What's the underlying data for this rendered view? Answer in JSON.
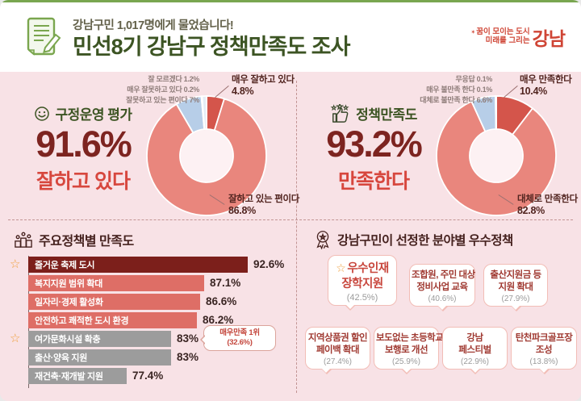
{
  "colors": {
    "background": "#f8e2e6",
    "header_green": "#79a650",
    "title_green": "#3c5423",
    "big_maroon": "#7d2420",
    "verdict_red": "#d7473e",
    "donut_main": "#e9867d",
    "donut_strong": "#d4554b",
    "donut_blue": "#b7cee8",
    "bar_top": "#7c1f1b",
    "bar_salmon": "#de6e66",
    "bar_gray": "#9c9c9c",
    "logo_red": "#cf4434"
  },
  "header": {
    "kicker": "강남구민 1,017명에게 물었습니다!",
    "title": "민선8기 강남구 정책만족도 조사",
    "logo": {
      "line1": "꿈이 모이는 도시",
      "line2": "미래를 그리는",
      "brand": "강남"
    }
  },
  "chart_data": [
    {
      "type": "pie",
      "subtype": "donut",
      "title": "구정운영 평가",
      "center_value": "91.6%",
      "verdict": "잘하고 있다",
      "slices": [
        {
          "label": "매우 잘하고 있다",
          "value": 4.8,
          "color": "#d4554b"
        },
        {
          "label": "잘하고 있는 편이다",
          "value": 86.8,
          "color": "#e9867d"
        },
        {
          "label": "잘못하고 있는 편이다",
          "value": 7.0,
          "color": "#b7cee8"
        },
        {
          "label": "매우 잘못하고 있다",
          "value": 0.2,
          "color": "#f1dfe2"
        },
        {
          "label": "잘 모르겠다",
          "value": 1.2,
          "color": "#e4edf6"
        }
      ],
      "labels": {
        "minor": [
          "잘 모르겠다 1.2%",
          "매우 잘못하고 있다 0.2%",
          "잘못하고 있는 편이다 7%"
        ],
        "top_name": "매우 잘하고 있다",
        "top_pct": "4.8%",
        "bottom_name": "잘하고 있는 편이다",
        "bottom_pct": "86.8%"
      }
    },
    {
      "type": "pie",
      "subtype": "donut",
      "title": "정책만족도",
      "center_value": "93.2%",
      "verdict": "만족한다",
      "slices": [
        {
          "label": "매우 만족한다",
          "value": 10.4,
          "color": "#d4554b"
        },
        {
          "label": "대체로 만족한다",
          "value": 82.8,
          "color": "#e9867d"
        },
        {
          "label": "대체로 불만족 한다",
          "value": 6.6,
          "color": "#b7cee8"
        },
        {
          "label": "매우 불만족 한다",
          "value": 0.1,
          "color": "#f1dfe2"
        },
        {
          "label": "무응답",
          "value": 0.1,
          "color": "#e4edf6"
        }
      ],
      "labels": {
        "minor": [
          "무응답 0.1%",
          "매우 불만족 한다 0.1%",
          "대체로 불만족 한다 6.6%"
        ],
        "top_name": "매우 만족한다",
        "top_pct": "10.4%",
        "bottom_name": "대체로 만족한다",
        "bottom_pct": "82.8%"
      }
    },
    {
      "type": "bar",
      "title": "주요정책별 만족도",
      "categories": [
        "즐거운 축제 도시",
        "복지지원 범위 확대",
        "일자리·경제 활성화",
        "안전하고 쾌적한 도시 환경",
        "여가문화시설 확충",
        "출산·양육 지원",
        "재건축·재개발 지원"
      ],
      "values": [
        92.6,
        87.1,
        86.6,
        86.2,
        83,
        83,
        77.4
      ],
      "value_labels": [
        "92.6%",
        "87.1%",
        "86.6%",
        "86.2%",
        "83%",
        "83%",
        "77.4%"
      ],
      "colors": [
        "#7c1f1b",
        "#de6e66",
        "#de6e66",
        "#de6e66",
        "#9c9c9c",
        "#9c9c9c",
        "#9c9c9c"
      ],
      "starred_rows": [
        0,
        4
      ],
      "xlim": [
        65,
        92.6
      ],
      "annotation": {
        "line1": "매우만족 1위",
        "line2": "(32.6%)",
        "target": "여가문화시설 확충"
      }
    }
  ],
  "best_policies": {
    "title": "강남구민이 선정한 분야별 우수정책",
    "cards": [
      {
        "line1": "우수인재",
        "line2": "장학지원",
        "pct": "(42.5%)",
        "starred": true
      },
      {
        "line1": "조합원, 주민 대상",
        "line2": "정비사업 교육",
        "pct": "(40.6%)"
      },
      {
        "line1": "출산지원금 등",
        "line2": "지원 확대",
        "pct": "(27.9%)"
      },
      {
        "line1": "지역상품권 할인",
        "line2": "페이백 확대",
        "pct": "(27.4%)"
      },
      {
        "line1": "보도없는 초등학교",
        "line2": "보행로 개선",
        "pct": "(25.9%)"
      },
      {
        "line1": "강남",
        "line2": "페스티벌",
        "pct": "(22.9%)"
      },
      {
        "line1": "탄천파크골프장",
        "line2": "조성",
        "pct": "(13.8%)"
      }
    ]
  }
}
